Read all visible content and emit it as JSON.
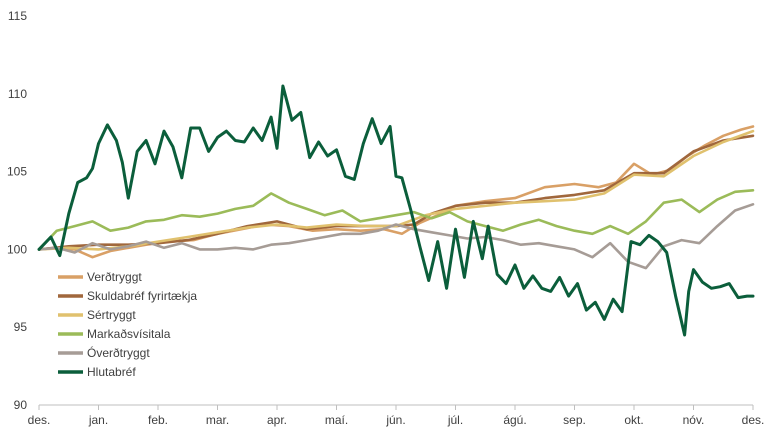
{
  "chart_data": {
    "type": "line",
    "title": "",
    "xlabel": "",
    "ylabel": "",
    "ylim": [
      90,
      115
    ],
    "yticks": [
      90,
      95,
      100,
      105,
      110,
      115
    ],
    "xlim": [
      0,
      12
    ],
    "x_ticks": [
      "des.",
      "jan.",
      "feb.",
      "mar.",
      "apr.",
      "maí.",
      "jún.",
      "júl.",
      "ágú.",
      "sep.",
      "okt.",
      "nóv.",
      "des."
    ],
    "legend_position": "left-middle",
    "series": [
      {
        "name": "Verðtryggt",
        "color": "#d9a066",
        "x": [
          0,
          0.3,
          0.6,
          0.9,
          1.2,
          1.5,
          1.8,
          2.2,
          2.6,
          3.0,
          3.4,
          3.8,
          4.2,
          4.6,
          5.0,
          5.4,
          5.8,
          6.1,
          6.4,
          6.7,
          7.0,
          7.5,
          8.0,
          8.5,
          9.0,
          9.4,
          9.7,
          10.0,
          10.3,
          10.6,
          10.9,
          11.2,
          11.5,
          11.8,
          12.0
        ],
        "y": [
          100.0,
          100.1,
          100.0,
          99.5,
          99.9,
          100.1,
          100.3,
          100.5,
          100.6,
          101.0,
          101.3,
          101.6,
          101.5,
          101.2,
          101.3,
          101.2,
          101.3,
          101.0,
          101.7,
          102.2,
          102.8,
          103.1,
          103.3,
          104.0,
          104.2,
          104.0,
          104.3,
          105.5,
          104.8,
          105.1,
          106.0,
          106.7,
          107.3,
          107.7,
          107.9
        ]
      },
      {
        "name": "Skuldabréf fyrirtækja",
        "color": "#a0673c",
        "x": [
          0,
          0.5,
          1.0,
          1.5,
          2.0,
          2.5,
          3.0,
          3.5,
          4.0,
          4.5,
          5.0,
          5.5,
          6.0,
          6.3,
          6.6,
          7.0,
          7.5,
          8.0,
          8.5,
          9.0,
          9.5,
          10.0,
          10.5,
          11.0,
          11.5,
          12.0
        ],
        "y": [
          100.0,
          100.2,
          100.3,
          100.3,
          100.4,
          100.6,
          101.0,
          101.5,
          101.8,
          101.3,
          101.5,
          101.5,
          101.5,
          101.6,
          102.3,
          102.8,
          103.0,
          103.0,
          103.3,
          103.5,
          103.8,
          104.9,
          104.9,
          106.3,
          107.0,
          107.3
        ]
      },
      {
        "name": "Sértryggt",
        "color": "#e0c16e",
        "x": [
          0,
          0.5,
          1.0,
          1.5,
          2.0,
          2.5,
          3.0,
          3.5,
          4.0,
          4.5,
          5.0,
          5.5,
          6.0,
          6.5,
          7.0,
          7.5,
          8.0,
          8.5,
          9.0,
          9.5,
          10.0,
          10.5,
          11.0,
          11.5,
          12.0
        ],
        "y": [
          100.0,
          100.1,
          100.0,
          100.2,
          100.5,
          100.8,
          101.1,
          101.4,
          101.6,
          101.4,
          101.6,
          101.5,
          101.5,
          102.2,
          102.6,
          102.8,
          103.0,
          103.1,
          103.2,
          103.6,
          104.8,
          104.7,
          106.0,
          106.9,
          107.6
        ]
      },
      {
        "name": "Markaðsvísitala",
        "color": "#9bbb59",
        "x": [
          0,
          0.3,
          0.6,
          0.9,
          1.2,
          1.5,
          1.8,
          2.1,
          2.4,
          2.7,
          3.0,
          3.3,
          3.6,
          3.9,
          4.2,
          4.5,
          4.8,
          5.1,
          5.4,
          5.7,
          6.0,
          6.3,
          6.6,
          6.9,
          7.2,
          7.5,
          7.8,
          8.1,
          8.4,
          8.7,
          9.0,
          9.3,
          9.6,
          9.9,
          10.2,
          10.5,
          10.8,
          11.1,
          11.4,
          11.7,
          12.0
        ],
        "y": [
          100.0,
          101.2,
          101.5,
          101.8,
          101.2,
          101.4,
          101.8,
          101.9,
          102.2,
          102.1,
          102.3,
          102.6,
          102.8,
          103.6,
          103.0,
          102.6,
          102.2,
          102.5,
          101.8,
          102.0,
          102.2,
          102.4,
          102.0,
          102.4,
          101.8,
          101.5,
          101.2,
          101.6,
          101.9,
          101.5,
          101.2,
          101.0,
          101.5,
          101.0,
          101.8,
          103.0,
          103.2,
          102.4,
          103.2,
          103.7,
          103.8
        ]
      },
      {
        "name": "Óverðtryggt",
        "color": "#a69c96",
        "x": [
          0,
          0.3,
          0.6,
          0.9,
          1.2,
          1.5,
          1.8,
          2.1,
          2.4,
          2.7,
          3.0,
          3.3,
          3.6,
          3.9,
          4.2,
          4.5,
          4.8,
          5.1,
          5.4,
          5.7,
          6.0,
          6.3,
          6.6,
          6.9,
          7.2,
          7.5,
          7.8,
          8.1,
          8.4,
          8.7,
          9.0,
          9.3,
          9.6,
          9.9,
          10.2,
          10.5,
          10.8,
          11.1,
          11.4,
          11.7,
          12.0
        ],
        "y": [
          100.0,
          100.1,
          99.8,
          100.4,
          100.0,
          100.2,
          100.5,
          100.1,
          100.4,
          100.0,
          100.0,
          100.1,
          100.0,
          100.3,
          100.4,
          100.6,
          100.8,
          101.0,
          101.0,
          101.2,
          101.6,
          101.3,
          101.1,
          100.9,
          100.7,
          100.8,
          100.6,
          100.3,
          100.4,
          100.2,
          100.0,
          99.5,
          100.4,
          99.2,
          98.8,
          100.2,
          100.6,
          100.4,
          101.5,
          102.5,
          102.9
        ]
      },
      {
        "name": "Hlutabréf",
        "color": "#0b5e3b",
        "x": [
          0,
          0.2,
          0.35,
          0.5,
          0.65,
          0.8,
          0.9,
          1.0,
          1.15,
          1.3,
          1.4,
          1.5,
          1.65,
          1.8,
          1.95,
          2.1,
          2.25,
          2.4,
          2.55,
          2.7,
          2.85,
          3.0,
          3.15,
          3.3,
          3.45,
          3.6,
          3.75,
          3.9,
          4.0,
          4.1,
          4.25,
          4.4,
          4.55,
          4.7,
          4.85,
          5.0,
          5.15,
          5.3,
          5.45,
          5.6,
          5.75,
          5.9,
          6.0,
          6.1,
          6.25,
          6.4,
          6.55,
          6.7,
          6.85,
          7.0,
          7.15,
          7.3,
          7.45,
          7.55,
          7.7,
          7.85,
          8.0,
          8.15,
          8.3,
          8.45,
          8.6,
          8.75,
          8.9,
          9.05,
          9.2,
          9.35,
          9.5,
          9.65,
          9.8,
          9.95,
          10.1,
          10.25,
          10.4,
          10.55,
          10.7,
          10.85,
          10.92,
          11.0,
          11.15,
          11.3,
          11.45,
          11.6,
          11.75,
          11.9,
          12.0
        ],
        "y": [
          100.0,
          100.8,
          99.6,
          102.3,
          104.3,
          104.6,
          105.2,
          106.8,
          108.0,
          107.0,
          105.6,
          103.3,
          106.3,
          107.0,
          105.5,
          107.6,
          106.6,
          104.6,
          107.8,
          107.8,
          106.3,
          107.2,
          107.6,
          107.0,
          106.9,
          107.8,
          107.0,
          108.5,
          106.5,
          110.5,
          108.3,
          108.8,
          105.9,
          106.9,
          106.0,
          106.4,
          104.7,
          104.5,
          106.8,
          108.4,
          106.8,
          107.9,
          104.7,
          104.6,
          102.5,
          100.2,
          98.0,
          100.5,
          97.5,
          101.3,
          98.2,
          101.8,
          99.4,
          101.5,
          98.4,
          97.8,
          99.0,
          97.5,
          98.3,
          97.5,
          97.3,
          98.2,
          97.0,
          97.8,
          96.1,
          96.6,
          95.5,
          96.8,
          96.0,
          100.5,
          100.3,
          100.9,
          100.5,
          99.8,
          97.0,
          94.5,
          97.3,
          98.7,
          97.9,
          97.5,
          97.6,
          97.8,
          96.9,
          97.0,
          97.0
        ]
      }
    ]
  }
}
